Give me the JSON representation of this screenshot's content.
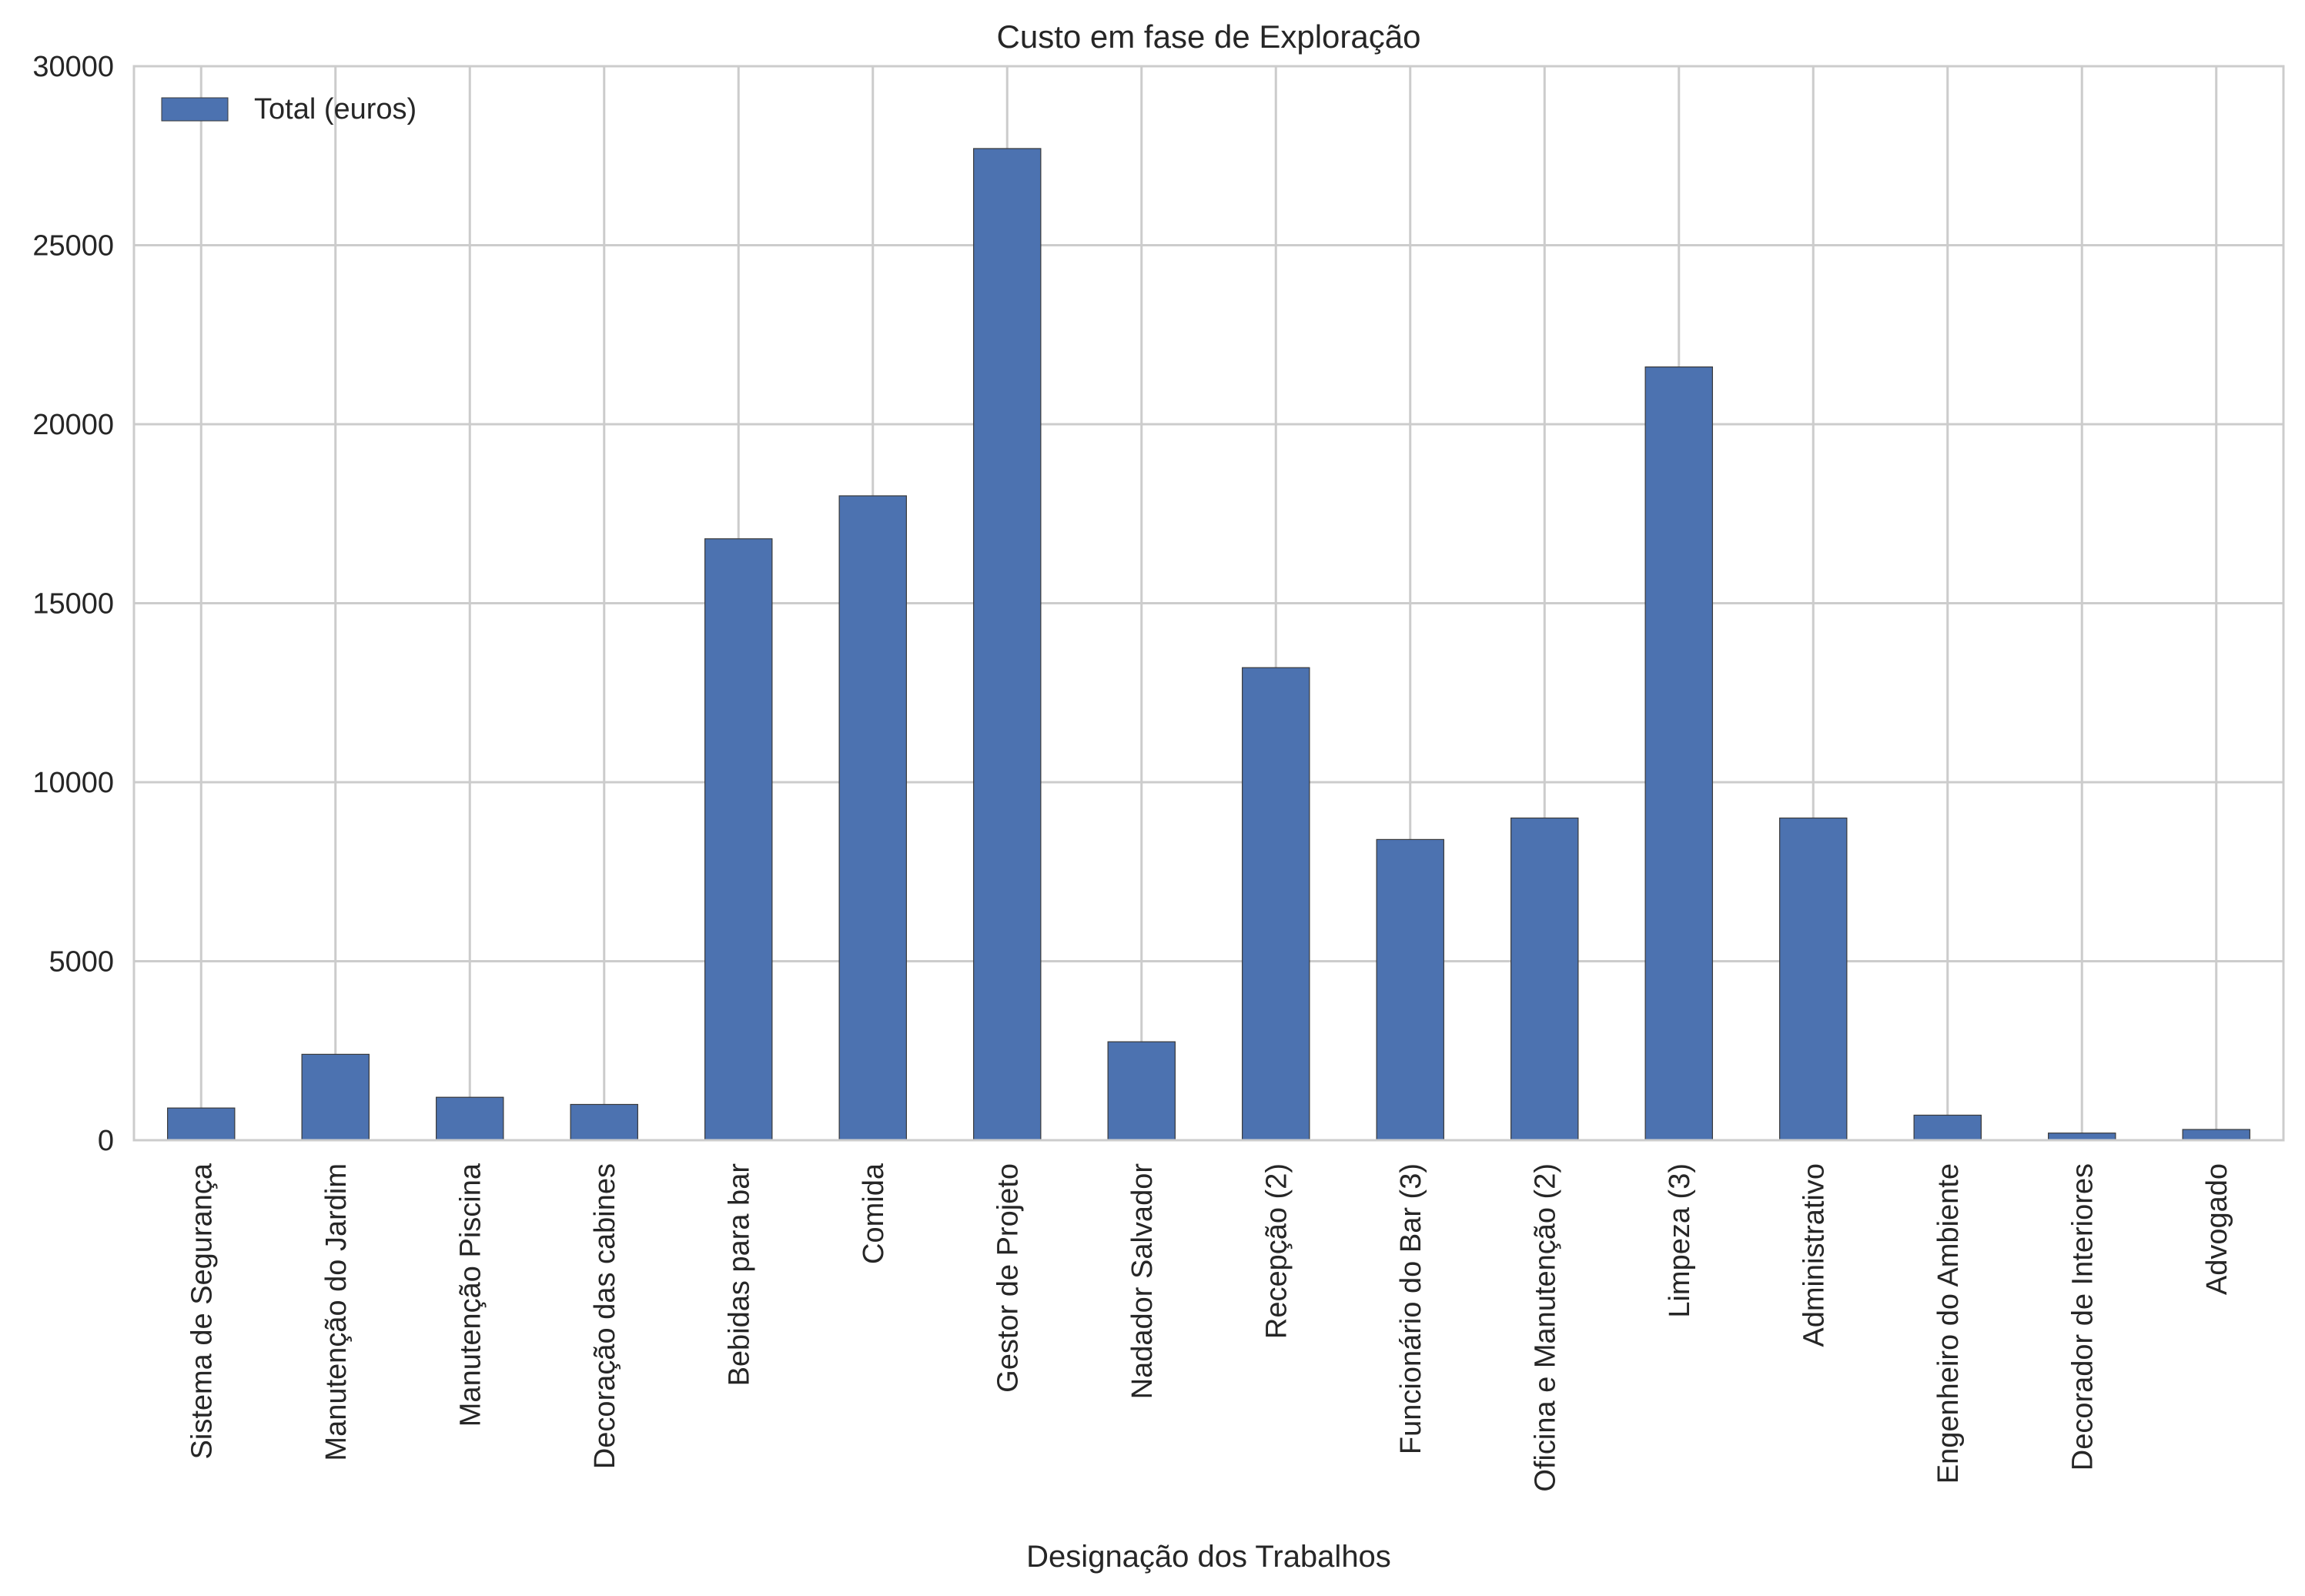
{
  "chart_data": {
    "type": "bar",
    "title": "Custo em fase de Exploração",
    "xlabel": "Designação dos Trabalhos",
    "ylabel": "",
    "ylim": [
      0,
      30000
    ],
    "yticks": [
      "0",
      "5000",
      "10000",
      "15000",
      "20000",
      "25000",
      "30000"
    ],
    "grid": true,
    "legend_position": "top-left",
    "categories": [
      "Sistema de Segurança",
      "Manutenção do Jardim",
      "Manutenção Piscina",
      "Decoração das cabines",
      "Bebidas para bar",
      "Comida",
      "Gestor de Projeto",
      "Nadador Salvador",
      "Recepção (2)",
      "Funcionário do Bar (3)",
      "Oficina e Manutenção (2)",
      "Limpeza (3)",
      "Administrativo",
      "Engenheiro do Ambiente",
      "Decorador de Interiores",
      "Advogado"
    ],
    "series": [
      {
        "name": "Total (euros)",
        "color": "#4c72b0",
        "values": [
          900,
          2400,
          1200,
          1000,
          16800,
          18000,
          27700,
          2750,
          13200,
          8400,
          9000,
          21600,
          9000,
          700,
          200,
          300
        ]
      }
    ]
  }
}
